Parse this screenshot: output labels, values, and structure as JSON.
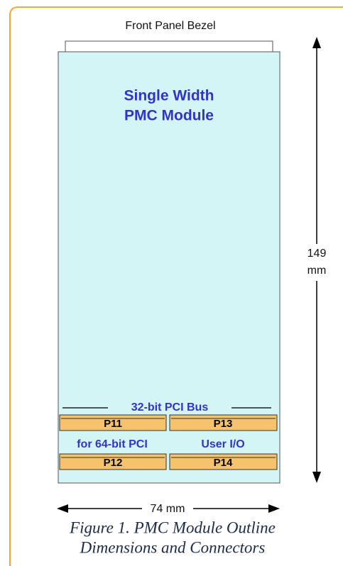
{
  "bezel_label": "Front Panel Bezel",
  "module_label": [
    "Single Width",
    "PMC Module"
  ],
  "height_label": [
    "149",
    "mm"
  ],
  "bus_label": "32-bit PCI Bus",
  "connectors": [
    "P11",
    "P13",
    "P12",
    "P14"
  ],
  "connector_notes": [
    "for 64-bit PCI",
    "User I/O"
  ],
  "width_label": "74 mm",
  "caption": [
    "Figure 1. PMC Module Outline",
    "Dimensions and Connectors"
  ]
}
